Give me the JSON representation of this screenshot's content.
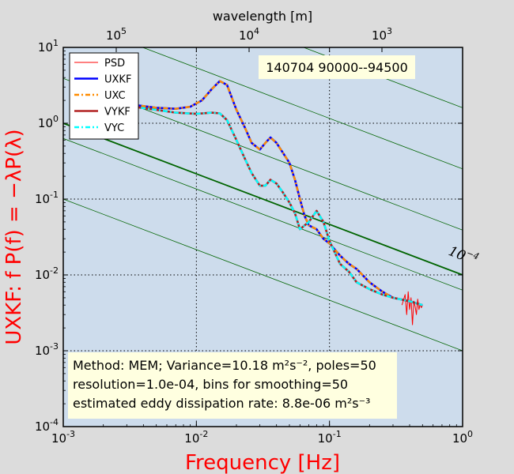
{
  "chart_data": {
    "type": "line",
    "x_scale": "log",
    "y_scale": "log",
    "xlim": [
      0.001,
      1.0
    ],
    "ylim": [
      0.0001,
      10.0
    ],
    "grid": true,
    "legend_position": "top-left",
    "xlabel": "Frequency [Hz]",
    "ylabel": "UXKF:  f P(f) = −λP(λ)",
    "top_xlabel": "wavelength [m]",
    "top_x_ticks": [
      {
        "base": "10",
        "exp": "5"
      },
      {
        "base": "10",
        "exp": "4"
      },
      {
        "base": "10",
        "exp": "3"
      }
    ],
    "x_ticks": [
      {
        "base": "10",
        "exp": "-3"
      },
      {
        "base": "10",
        "exp": "-2"
      },
      {
        "base": "10",
        "exp": "-1"
      },
      {
        "base": "10",
        "exp": "0"
      }
    ],
    "y_ticks": [
      {
        "base": "10",
        "exp": "1"
      },
      {
        "base": "10",
        "exp": "0"
      },
      {
        "base": "10",
        "exp": "-1"
      },
      {
        "base": "10",
        "exp": "-2"
      },
      {
        "base": "10",
        "exp": "-3"
      },
      {
        "base": "10",
        "exp": "-4"
      }
    ],
    "title_box": "140704 90000--94500",
    "reference_label": "10",
    "reference_label_exp": "−4",
    "series": [
      {
        "name": "PSD",
        "color": "#ff0000",
        "style": "solid",
        "x": [
          0.35,
          0.37,
          0.38,
          0.39,
          0.4,
          0.41,
          0.42,
          0.43,
          0.44,
          0.45,
          0.46,
          0.47,
          0.48,
          0.49,
          0.5
        ],
        "y": [
          0.004,
          0.0055,
          0.003,
          0.006,
          0.0035,
          0.005,
          0.0022,
          0.0045,
          0.0038,
          0.003,
          0.0048,
          0.0035,
          0.0041,
          0.0037,
          0.004
        ]
      },
      {
        "name": "UXKF",
        "color": "#0000ff",
        "style": "solid",
        "x": [
          0.0018,
          0.003,
          0.005,
          0.007,
          0.009,
          0.011,
          0.013,
          0.015,
          0.017,
          0.02,
          0.023,
          0.026,
          0.03,
          0.033,
          0.036,
          0.04,
          0.045,
          0.05,
          0.055,
          0.06,
          0.065,
          0.07,
          0.08,
          0.09,
          0.1,
          0.12,
          0.14,
          0.16,
          0.2,
          0.25,
          0.3,
          0.4,
          0.5
        ],
        "y": [
          2.0,
          1.8,
          1.6,
          1.55,
          1.65,
          2.0,
          2.8,
          3.6,
          3.2,
          1.5,
          0.9,
          0.55,
          0.45,
          0.55,
          0.65,
          0.55,
          0.4,
          0.3,
          0.18,
          0.1,
          0.06,
          0.045,
          0.04,
          0.03,
          0.026,
          0.018,
          0.014,
          0.012,
          0.008,
          0.006,
          0.005,
          0.0045,
          0.004
        ]
      },
      {
        "name": "UXC",
        "color": "#ff8c00",
        "style": "dashdot",
        "x": [
          0.0018,
          0.003,
          0.005,
          0.007,
          0.009,
          0.011,
          0.013,
          0.015,
          0.017,
          0.02,
          0.023,
          0.026,
          0.03,
          0.033,
          0.036,
          0.04,
          0.045,
          0.05,
          0.055,
          0.06,
          0.065,
          0.07,
          0.08,
          0.09,
          0.1,
          0.12,
          0.14,
          0.16,
          0.2,
          0.25,
          0.3,
          0.4,
          0.5
        ],
        "y": [
          2.0,
          1.8,
          1.6,
          1.55,
          1.65,
          2.0,
          2.8,
          3.6,
          3.2,
          1.5,
          0.9,
          0.55,
          0.45,
          0.55,
          0.65,
          0.55,
          0.4,
          0.3,
          0.18,
          0.1,
          0.06,
          0.045,
          0.04,
          0.03,
          0.026,
          0.018,
          0.014,
          0.012,
          0.008,
          0.006,
          0.005,
          0.0045,
          0.004
        ]
      },
      {
        "name": "VYKF",
        "color": "#b22222",
        "style": "solid",
        "x": [
          0.0018,
          0.003,
          0.005,
          0.007,
          0.01,
          0.013,
          0.015,
          0.017,
          0.02,
          0.023,
          0.026,
          0.03,
          0.033,
          0.036,
          0.04,
          0.045,
          0.05,
          0.055,
          0.06,
          0.07,
          0.08,
          0.09,
          0.1,
          0.12,
          0.14,
          0.16,
          0.2,
          0.25,
          0.3,
          0.4,
          0.5
        ],
        "y": [
          2.0,
          1.7,
          1.5,
          1.38,
          1.33,
          1.38,
          1.35,
          1.1,
          0.6,
          0.35,
          0.22,
          0.15,
          0.15,
          0.18,
          0.16,
          0.12,
          0.09,
          0.065,
          0.04,
          0.05,
          0.07,
          0.05,
          0.028,
          0.014,
          0.011,
          0.008,
          0.0065,
          0.0055,
          0.005,
          0.0045,
          0.004
        ]
      },
      {
        "name": "VYC",
        "color": "#00ffff",
        "style": "dashdot",
        "x": [
          0.0018,
          0.003,
          0.005,
          0.007,
          0.01,
          0.013,
          0.015,
          0.017,
          0.02,
          0.023,
          0.026,
          0.03,
          0.033,
          0.036,
          0.04,
          0.045,
          0.05,
          0.055,
          0.06,
          0.07,
          0.08,
          0.09,
          0.1,
          0.12,
          0.14,
          0.16,
          0.2,
          0.25,
          0.3,
          0.4,
          0.5
        ],
        "y": [
          2.0,
          1.7,
          1.5,
          1.38,
          1.33,
          1.38,
          1.35,
          1.1,
          0.6,
          0.35,
          0.22,
          0.15,
          0.15,
          0.18,
          0.16,
          0.12,
          0.09,
          0.065,
          0.04,
          0.05,
          0.07,
          0.05,
          0.028,
          0.014,
          0.011,
          0.008,
          0.0065,
          0.0055,
          0.005,
          0.0045,
          0.004
        ]
      }
    ],
    "guide_lines": {
      "slope": -0.6667,
      "color": "#006400",
      "intercepts_at_x_0_001": [
        5000,
        1000,
        160,
        25,
        3.9,
        0.63,
        0.1
      ],
      "highlighted_intercept": 1.0
    },
    "annotation": {
      "line1": "Method: MEM; Variance=10.18 m²s⁻², poles=50",
      "line2": "resolution=1.0e-04, bins for smoothing=50",
      "line3": "estimated eddy dissipation rate: 8.8e-06 m²s⁻³"
    },
    "colors": {
      "page_bg": "#dcdcdc",
      "plot_bg": "#cddcec",
      "box_bg": "#ffffe0"
    }
  }
}
